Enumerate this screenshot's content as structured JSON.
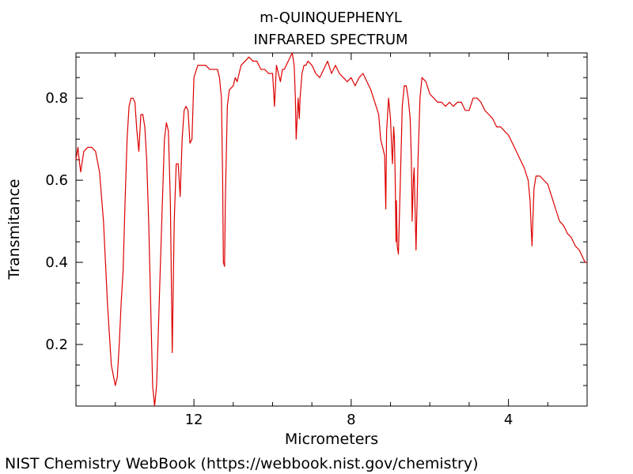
{
  "footer": "NIST Chemistry WebBook (https://webbook.nist.gov/chemistry)",
  "chart_data": {
    "type": "line",
    "title": "m-QUINQUEPHENYL",
    "subtitle": "INFRARED SPECTRUM",
    "xlabel": "Micrometers",
    "ylabel": "Transmitance",
    "xlim": [
      15,
      2
    ],
    "ylim": [
      0.05,
      0.91
    ],
    "x_ticks": [
      12,
      8,
      4
    ],
    "y_ticks": [
      0.2,
      0.4,
      0.6,
      0.8
    ],
    "grid": false,
    "line_color": "#dd0000",
    "series": [
      {
        "x": [
          15.0,
          14.95,
          14.92,
          14.88,
          14.8,
          14.7,
          14.6,
          14.5,
          14.4,
          14.3,
          14.2,
          14.1,
          14.0,
          13.95,
          13.9,
          13.85,
          13.8,
          13.75,
          13.7,
          13.65,
          13.6,
          13.55,
          13.5,
          13.45,
          13.4,
          13.35,
          13.3,
          13.25,
          13.2,
          13.15,
          13.1,
          13.05,
          13.0,
          12.95,
          12.9,
          12.85,
          12.8,
          12.75,
          12.7,
          12.65,
          12.6,
          12.55,
          12.5,
          12.45,
          12.4,
          12.35,
          12.3,
          12.25,
          12.2,
          12.15,
          12.1,
          12.05,
          12.0,
          11.9,
          11.8,
          11.7,
          11.6,
          11.5,
          11.4,
          11.35,
          11.3,
          11.27,
          11.25,
          11.22,
          11.2,
          11.15,
          11.1,
          11.0,
          10.95,
          10.9,
          10.8,
          10.7,
          10.6,
          10.5,
          10.4,
          10.3,
          10.2,
          10.1,
          10.0,
          9.95,
          9.9,
          9.85,
          9.8,
          9.75,
          9.7,
          9.6,
          9.5,
          9.45,
          9.42,
          9.4,
          9.35,
          9.32,
          9.3,
          9.25,
          9.2,
          9.15,
          9.1,
          9.0,
          8.9,
          8.8,
          8.7,
          8.6,
          8.5,
          8.4,
          8.3,
          8.2,
          8.1,
          8.0,
          7.9,
          7.8,
          7.7,
          7.6,
          7.5,
          7.4,
          7.3,
          7.25,
          7.2,
          7.15,
          7.12,
          7.1,
          7.05,
          7.0,
          6.97,
          6.95,
          6.92,
          6.9,
          6.88,
          6.86,
          6.85,
          6.83,
          6.8,
          6.75,
          6.7,
          6.65,
          6.6,
          6.55,
          6.5,
          6.47,
          6.45,
          6.42,
          6.4,
          6.38,
          6.35,
          6.3,
          6.25,
          6.2,
          6.1,
          6.0,
          5.9,
          5.8,
          5.7,
          5.6,
          5.5,
          5.4,
          5.3,
          5.2,
          5.1,
          5.0,
          4.9,
          4.8,
          4.7,
          4.6,
          4.5,
          4.4,
          4.3,
          4.2,
          4.1,
          4.0,
          3.9,
          3.8,
          3.7,
          3.6,
          3.5,
          3.45,
          3.42,
          3.4,
          3.38,
          3.35,
          3.3,
          3.2,
          3.1,
          3.0,
          2.9,
          2.8,
          2.7,
          2.6,
          2.5,
          2.4,
          2.3,
          2.2,
          2.1,
          2.05,
          2.0
        ],
        "y": [
          0.65,
          0.68,
          0.65,
          0.62,
          0.67,
          0.68,
          0.68,
          0.67,
          0.62,
          0.5,
          0.3,
          0.15,
          0.1,
          0.12,
          0.2,
          0.3,
          0.38,
          0.55,
          0.7,
          0.78,
          0.8,
          0.8,
          0.79,
          0.72,
          0.67,
          0.76,
          0.76,
          0.73,
          0.65,
          0.5,
          0.3,
          0.1,
          0.05,
          0.1,
          0.25,
          0.4,
          0.55,
          0.7,
          0.74,
          0.72,
          0.55,
          0.18,
          0.5,
          0.64,
          0.64,
          0.56,
          0.7,
          0.77,
          0.78,
          0.77,
          0.69,
          0.7,
          0.85,
          0.88,
          0.88,
          0.88,
          0.87,
          0.87,
          0.87,
          0.85,
          0.8,
          0.6,
          0.4,
          0.39,
          0.55,
          0.78,
          0.82,
          0.83,
          0.85,
          0.84,
          0.88,
          0.89,
          0.9,
          0.89,
          0.89,
          0.87,
          0.87,
          0.86,
          0.86,
          0.78,
          0.88,
          0.86,
          0.84,
          0.87,
          0.87,
          0.89,
          0.91,
          0.88,
          0.8,
          0.7,
          0.8,
          0.75,
          0.8,
          0.86,
          0.88,
          0.88,
          0.89,
          0.88,
          0.86,
          0.85,
          0.87,
          0.89,
          0.86,
          0.88,
          0.86,
          0.85,
          0.84,
          0.85,
          0.83,
          0.85,
          0.86,
          0.84,
          0.82,
          0.79,
          0.76,
          0.7,
          0.68,
          0.66,
          0.53,
          0.72,
          0.8,
          0.75,
          0.68,
          0.64,
          0.73,
          0.7,
          0.6,
          0.45,
          0.55,
          0.44,
          0.42,
          0.6,
          0.78,
          0.83,
          0.83,
          0.8,
          0.75,
          0.65,
          0.5,
          0.6,
          0.63,
          0.55,
          0.43,
          0.65,
          0.8,
          0.85,
          0.84,
          0.81,
          0.8,
          0.79,
          0.79,
          0.78,
          0.79,
          0.78,
          0.79,
          0.79,
          0.77,
          0.77,
          0.8,
          0.8,
          0.79,
          0.77,
          0.76,
          0.75,
          0.73,
          0.73,
          0.72,
          0.71,
          0.69,
          0.67,
          0.65,
          0.63,
          0.6,
          0.55,
          0.48,
          0.44,
          0.5,
          0.58,
          0.61,
          0.61,
          0.6,
          0.59,
          0.56,
          0.53,
          0.5,
          0.49,
          0.47,
          0.46,
          0.44,
          0.43,
          0.41,
          0.4,
          0.4
        ]
      }
    ]
  }
}
